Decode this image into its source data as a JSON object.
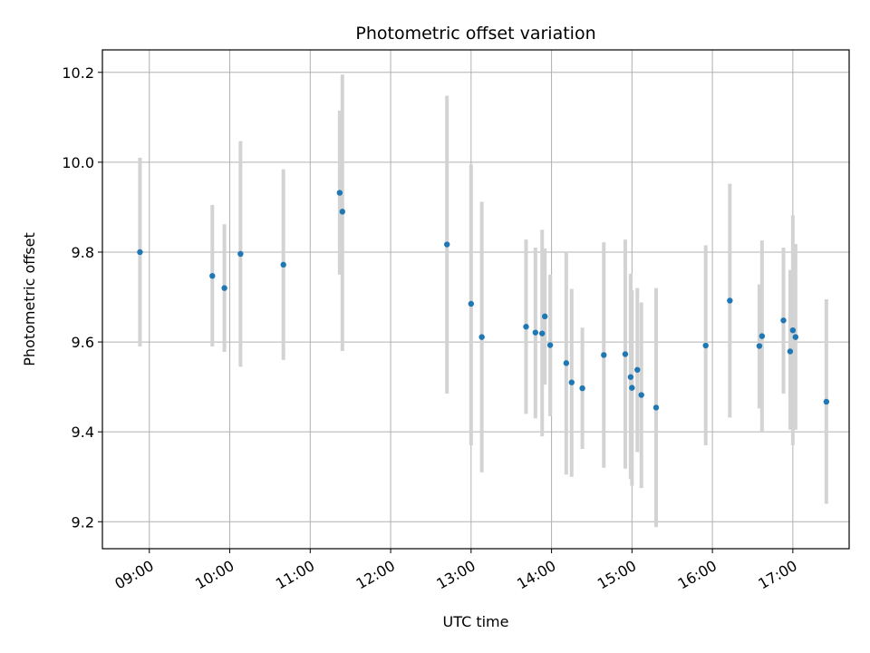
{
  "chart_data": {
    "type": "scatter",
    "title": "Photometric offset variation",
    "xlabel": "UTC time",
    "ylabel": "Photometric offset",
    "x_ticks": [
      "09:00",
      "10:00",
      "11:00",
      "12:00",
      "13:00",
      "14:00",
      "15:00",
      "16:00",
      "17:00"
    ],
    "y_ticks": [
      "9.2",
      "9.4",
      "9.6",
      "9.8",
      "10.0",
      "10.2"
    ],
    "xlim": [
      "08:25",
      "17:42"
    ],
    "ylim": [
      9.14,
      10.25
    ],
    "grid": true,
    "colors": {
      "points": "#1f77b4",
      "errorbars": "#d3d3d3",
      "grid": "#b0b0b0"
    },
    "points": [
      {
        "t": "08:53",
        "y": 9.8,
        "lo": 9.59,
        "hi": 10.01
      },
      {
        "t": "09:47",
        "y": 9.747,
        "lo": 9.59,
        "hi": 9.905
      },
      {
        "t": "09:56",
        "y": 9.72,
        "lo": 9.578,
        "hi": 9.862
      },
      {
        "t": "10:08",
        "y": 9.796,
        "lo": 9.545,
        "hi": 10.047
      },
      {
        "t": "10:40",
        "y": 9.772,
        "lo": 9.56,
        "hi": 9.984
      },
      {
        "t": "11:22",
        "y": 9.932,
        "lo": 9.75,
        "hi": 10.115
      },
      {
        "t": "11:24",
        "y": 9.89,
        "lo": 9.58,
        "hi": 10.195
      },
      {
        "t": "12:42",
        "y": 9.817,
        "lo": 9.485,
        "hi": 10.148
      },
      {
        "t": "13:00",
        "y": 9.685,
        "lo": 9.37,
        "hi": 9.995
      },
      {
        "t": "13:08",
        "y": 9.611,
        "lo": 9.31,
        "hi": 9.912
      },
      {
        "t": "13:41",
        "y": 9.634,
        "lo": 9.44,
        "hi": 9.828
      },
      {
        "t": "13:48",
        "y": 9.621,
        "lo": 9.43,
        "hi": 9.81
      },
      {
        "t": "13:53",
        "y": 9.619,
        "lo": 9.39,
        "hi": 9.85
      },
      {
        "t": "13:55",
        "y": 9.657,
        "lo": 9.505,
        "hi": 9.808
      },
      {
        "t": "13:59",
        "y": 9.593,
        "lo": 9.435,
        "hi": 9.75
      },
      {
        "t": "14:11",
        "y": 9.553,
        "lo": 9.305,
        "hi": 9.8
      },
      {
        "t": "14:15",
        "y": 9.51,
        "lo": 9.3,
        "hi": 9.718
      },
      {
        "t": "14:23",
        "y": 9.497,
        "lo": 9.362,
        "hi": 9.632
      },
      {
        "t": "14:39",
        "y": 9.571,
        "lo": 9.32,
        "hi": 9.822
      },
      {
        "t": "14:55",
        "y": 9.573,
        "lo": 9.318,
        "hi": 9.828
      },
      {
        "t": "14:59",
        "y": 9.522,
        "lo": 9.295,
        "hi": 9.752
      },
      {
        "t": "15:00",
        "y": 9.498,
        "lo": 9.28,
        "hi": 9.715
      },
      {
        "t": "15:04",
        "y": 9.538,
        "lo": 9.355,
        "hi": 9.72
      },
      {
        "t": "15:07",
        "y": 9.482,
        "lo": 9.275,
        "hi": 9.688
      },
      {
        "t": "15:18",
        "y": 9.454,
        "lo": 9.188,
        "hi": 9.72
      },
      {
        "t": "15:55",
        "y": 9.592,
        "lo": 9.37,
        "hi": 9.815
      },
      {
        "t": "16:13",
        "y": 9.692,
        "lo": 9.432,
        "hi": 9.952
      },
      {
        "t": "16:35",
        "y": 9.591,
        "lo": 9.452,
        "hi": 9.728
      },
      {
        "t": "16:37",
        "y": 9.613,
        "lo": 9.4,
        "hi": 9.826
      },
      {
        "t": "16:53",
        "y": 9.648,
        "lo": 9.485,
        "hi": 9.81
      },
      {
        "t": "16:58",
        "y": 9.579,
        "lo": 9.405,
        "hi": 9.76
      },
      {
        "t": "17:00",
        "y": 9.626,
        "lo": 9.37,
        "hi": 9.882
      },
      {
        "t": "17:02",
        "y": 9.611,
        "lo": 9.405,
        "hi": 9.818
      },
      {
        "t": "17:25",
        "y": 9.467,
        "lo": 9.24,
        "hi": 9.695
      }
    ]
  }
}
